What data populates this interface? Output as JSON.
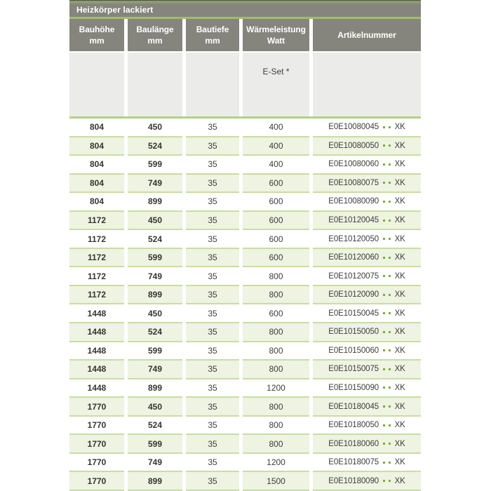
{
  "title": "Heizkörper lackiert",
  "columns": [
    {
      "line1": "Bauhöhe",
      "line2": "mm"
    },
    {
      "line1": "Baulänge",
      "line2": "mm"
    },
    {
      "line1": "Bautiefe",
      "line2": "mm"
    },
    {
      "line1": "Wärmeleistung",
      "line2": "Watt"
    },
    {
      "line1": "Artikelnummer",
      "line2": ""
    }
  ],
  "subheader": {
    "eset_label": "E-Set *"
  },
  "rows": [
    {
      "bauhoehe": "804",
      "baulaenge": "450",
      "bautiefe": "35",
      "watt": "400",
      "artikel_prefix": "E0E10080045",
      "artikel_suffix": "XK"
    },
    {
      "bauhoehe": "804",
      "baulaenge": "524",
      "bautiefe": "35",
      "watt": "400",
      "artikel_prefix": "E0E10080050",
      "artikel_suffix": "XK"
    },
    {
      "bauhoehe": "804",
      "baulaenge": "599",
      "bautiefe": "35",
      "watt": "400",
      "artikel_prefix": "E0E10080060",
      "artikel_suffix": "XK"
    },
    {
      "bauhoehe": "804",
      "baulaenge": "749",
      "bautiefe": "35",
      "watt": "600",
      "artikel_prefix": "E0E10080075",
      "artikel_suffix": "XK"
    },
    {
      "bauhoehe": "804",
      "baulaenge": "899",
      "bautiefe": "35",
      "watt": "600",
      "artikel_prefix": "E0E10080090",
      "artikel_suffix": "XK"
    },
    {
      "bauhoehe": "1172",
      "baulaenge": "450",
      "bautiefe": "35",
      "watt": "600",
      "artikel_prefix": "E0E10120045",
      "artikel_suffix": "XK"
    },
    {
      "bauhoehe": "1172",
      "baulaenge": "524",
      "bautiefe": "35",
      "watt": "600",
      "artikel_prefix": "E0E10120050",
      "artikel_suffix": "XK"
    },
    {
      "bauhoehe": "1172",
      "baulaenge": "599",
      "bautiefe": "35",
      "watt": "600",
      "artikel_prefix": "E0E10120060",
      "artikel_suffix": "XK"
    },
    {
      "bauhoehe": "1172",
      "baulaenge": "749",
      "bautiefe": "35",
      "watt": "800",
      "artikel_prefix": "E0E10120075",
      "artikel_suffix": "XK"
    },
    {
      "bauhoehe": "1172",
      "baulaenge": "899",
      "bautiefe": "35",
      "watt": "800",
      "artikel_prefix": "E0E10120090",
      "artikel_suffix": "XK"
    },
    {
      "bauhoehe": "1448",
      "baulaenge": "450",
      "bautiefe": "35",
      "watt": "600",
      "artikel_prefix": "E0E10150045",
      "artikel_suffix": "XK"
    },
    {
      "bauhoehe": "1448",
      "baulaenge": "524",
      "bautiefe": "35",
      "watt": "800",
      "artikel_prefix": "E0E10150050",
      "artikel_suffix": "XK"
    },
    {
      "bauhoehe": "1448",
      "baulaenge": "599",
      "bautiefe": "35",
      "watt": "800",
      "artikel_prefix": "E0E10150060",
      "artikel_suffix": "XK"
    },
    {
      "bauhoehe": "1448",
      "baulaenge": "749",
      "bautiefe": "35",
      "watt": "800",
      "artikel_prefix": "E0E10150075",
      "artikel_suffix": "XK"
    },
    {
      "bauhoehe": "1448",
      "baulaenge": "899",
      "bautiefe": "35",
      "watt": "1200",
      "artikel_prefix": "E0E10150090",
      "artikel_suffix": "XK"
    },
    {
      "bauhoehe": "1770",
      "baulaenge": "450",
      "bautiefe": "35",
      "watt": "800",
      "artikel_prefix": "E0E10180045",
      "artikel_suffix": "XK"
    },
    {
      "bauhoehe": "1770",
      "baulaenge": "524",
      "bautiefe": "35",
      "watt": "800",
      "artikel_prefix": "E0E10180050",
      "artikel_suffix": "XK"
    },
    {
      "bauhoehe": "1770",
      "baulaenge": "599",
      "bautiefe": "35",
      "watt": "800",
      "artikel_prefix": "E0E10180060",
      "artikel_suffix": "XK"
    },
    {
      "bauhoehe": "1770",
      "baulaenge": "749",
      "bautiefe": "35",
      "watt": "1200",
      "artikel_prefix": "E0E10180075",
      "artikel_suffix": "XK"
    },
    {
      "bauhoehe": "1770",
      "baulaenge": "899",
      "bautiefe": "35",
      "watt": "1500",
      "artikel_prefix": "E0E10180090",
      "artikel_suffix": "XK"
    }
  ],
  "colors": {
    "header_gray": "#85857d",
    "topstrip_olive": "#8e9c70",
    "accent_green": "#a4bd68",
    "accent_green_light": "#b4d085",
    "row_tint_green": "#eef3e2",
    "row_separator_green": "#c9dda3",
    "dot_green": "#7fad3e",
    "eset_band_gray": "#ebebe9",
    "text_dark": "#3d3d3b"
  }
}
